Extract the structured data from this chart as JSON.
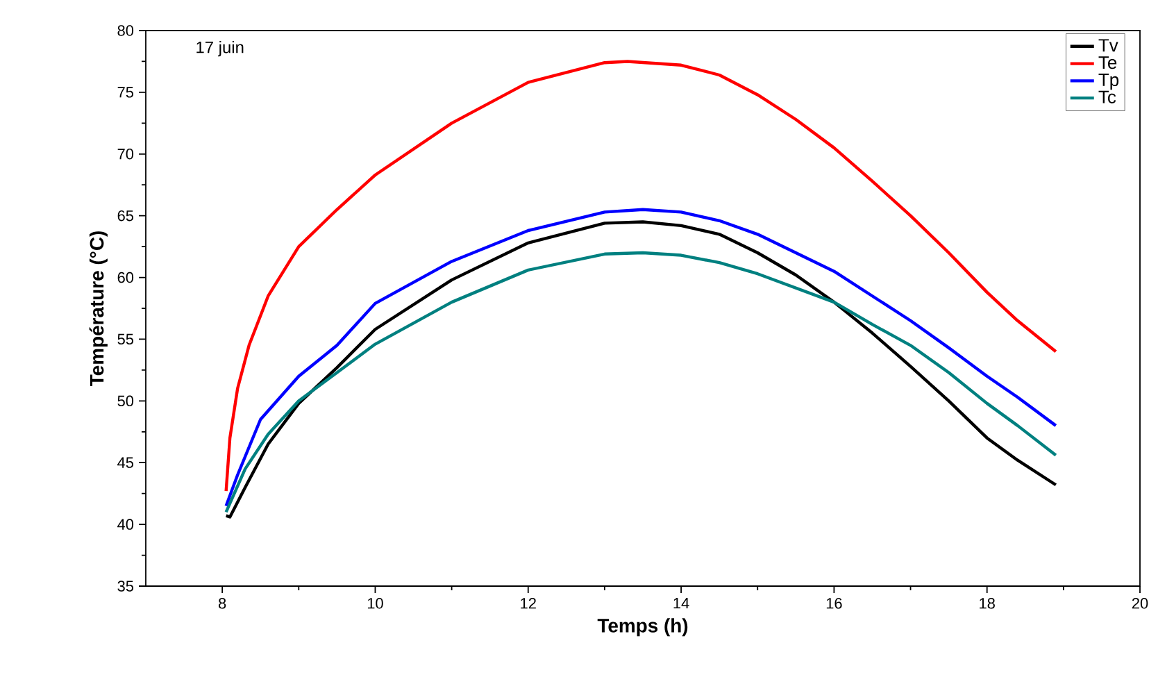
{
  "chart_data": {
    "type": "line",
    "xlabel": "Temps (h)",
    "ylabel": "Température (°C)",
    "annotations": [
      "17 juin"
    ],
    "xlim": [
      7,
      20
    ],
    "xticks": [
      8,
      10,
      12,
      14,
      16,
      18,
      20
    ],
    "ylim": [
      35,
      80
    ],
    "yticks": [
      35,
      40,
      45,
      50,
      55,
      60,
      65,
      70,
      75,
      80
    ],
    "legend": "top right",
    "grid": false,
    "marker": "none",
    "line_style": "solid",
    "series": [
      {
        "name": "Tv",
        "color": "#000000",
        "x": [
          8.05,
          8.1,
          8.3,
          8.6,
          9,
          9.5,
          10,
          11,
          12,
          13,
          13.5,
          14,
          14.5,
          15,
          15.5,
          16,
          16.5,
          17,
          17.5,
          18,
          18.4,
          18.9
        ],
        "values": [
          40.7,
          40.6,
          43,
          46.5,
          49.8,
          52.7,
          55.8,
          59.8,
          62.8,
          64.4,
          64.5,
          64.2,
          63.5,
          62,
          60.2,
          58,
          55.5,
          52.8,
          50,
          47,
          45.2,
          43.2
        ]
      },
      {
        "name": "Te",
        "color": "#ff0000",
        "x": [
          8.05,
          8.1,
          8.2,
          8.35,
          8.6,
          9,
          9.5,
          10,
          11,
          12,
          13,
          13.3,
          14,
          14.5,
          15,
          15.5,
          16,
          16.5,
          17,
          17.5,
          18,
          18.4,
          18.9
        ],
        "values": [
          42.7,
          47,
          51,
          54.5,
          58.5,
          62.5,
          65.5,
          68.3,
          72.5,
          75.8,
          77.4,
          77.5,
          77.2,
          76.4,
          74.8,
          72.8,
          70.5,
          67.8,
          65,
          62,
          58.8,
          56.5,
          54
        ]
      },
      {
        "name": "Tp",
        "color": "#0000ff",
        "x": [
          8.05,
          8.2,
          8.5,
          9,
          9.5,
          10,
          11,
          12,
          13,
          13.5,
          14,
          14.5,
          15,
          16,
          17,
          17.5,
          18,
          18.4,
          18.9
        ],
        "values": [
          41.5,
          44,
          48.5,
          52,
          54.5,
          57.9,
          61.3,
          63.8,
          65.3,
          65.5,
          65.3,
          64.6,
          63.5,
          60.5,
          56.5,
          54.3,
          52,
          50.3,
          48
        ]
      },
      {
        "name": "Tc",
        "color": "#008080",
        "x": [
          8.05,
          8.3,
          8.6,
          9,
          9.5,
          10,
          11,
          12,
          13,
          13.5,
          14,
          14.5,
          15,
          16,
          16.5,
          17,
          17.5,
          18,
          18.4,
          18.9
        ],
        "values": [
          41,
          44.5,
          47.3,
          50,
          52.3,
          54.6,
          58,
          60.6,
          61.9,
          62,
          61.8,
          61.2,
          60.3,
          58,
          56.2,
          54.5,
          52.3,
          49.8,
          48,
          45.6
        ]
      }
    ]
  }
}
